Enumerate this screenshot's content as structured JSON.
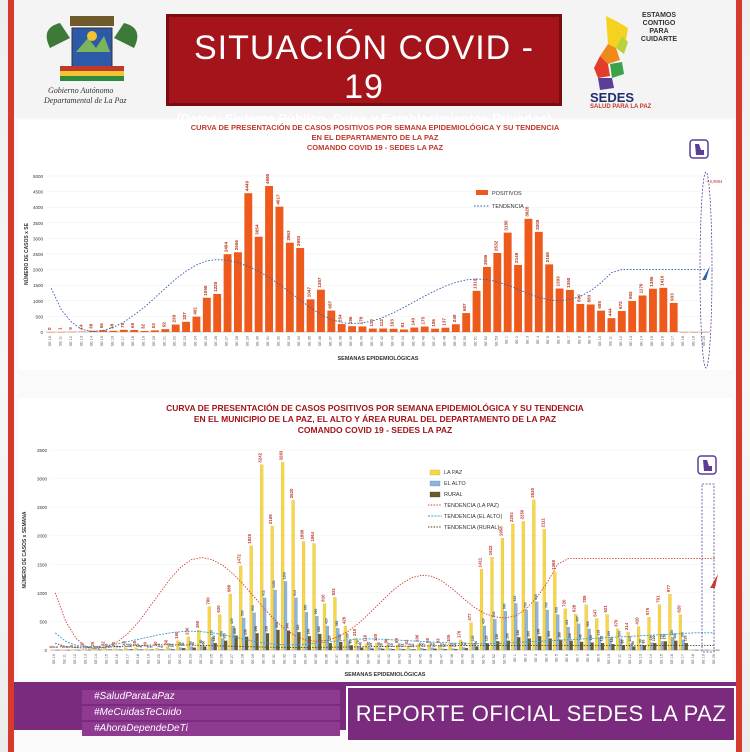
{
  "header": {
    "title": "SITUACIÓN  COVID - 19",
    "subtitle": "(Datos: Sistema Público, Cajas y Establecimientos Privados)",
    "left_logo_line1": "Gobierno Autónomo",
    "left_logo_line2": "Departamental de La Paz",
    "right_logo_line1": "ESTAMOS",
    "right_logo_line2": "CONTIGO",
    "right_logo_line3": "PARA",
    "right_logo_line4": "CUIDARTE",
    "right_logo_brand": "SEDES",
    "right_logo_tag": "SALUD PARA LA PAZ"
  },
  "chart1": {
    "title1": "CURVA DE PRESENTACIÓN DE CASOS POSITIVOS POR SEMANA EPIDEMIOLÓGICA Y SU TENDENCIA",
    "title2": "EN EL DEPARTAMENTO DE LA PAZ",
    "title3": "COMANDO COVID 19 - SEDES LA PAZ"
  },
  "chart2": {
    "title1": "CURVA DE PRESENTACIÓN DE CASOS POSITIVOS POR SEMANA EPIDEMIOLÓGICA Y SU TENDENCIA",
    "title2": "EN EL  MUNICIPIO DE LA PAZ, EL ALTO Y ÁREA RURAL DEL DEPARTAMENTO DE LA PAZ",
    "title3": "COMANDO COVID 19 - SEDES LA PAZ"
  },
  "footer": {
    "hashtag1": "#SaludParaLaPaz",
    "hashtag2": "#MeCuidasTeCuido",
    "hashtag3": "#AhoraDependeDeTi",
    "report": "REPORTE OFICIAL SEDES LA PAZ"
  },
  "colors": {
    "accent_red": "#a5141b",
    "frame_red": "#d63a2a",
    "bar_orange": "#ee5a1c",
    "lapaz_yellow": "#f7d64a",
    "elalto_blue": "#8fb4de",
    "rural_brown": "#6b5a2a",
    "purple": "#7b2b7e"
  },
  "chart_data": [
    {
      "type": "bar",
      "ylabel": "NÚMERO DE CASOS x SE",
      "xlabel": "SEMANAS EPIDEMIOLÓGICAS",
      "ylim": [
        0,
        5000
      ],
      "yticks": [
        0,
        500,
        1000,
        1500,
        2000,
        2500,
        3000,
        3500,
        4000,
        4500,
        5000
      ],
      "legend_position": "top-right",
      "categories": [
        "SE 10",
        "SE 11",
        "SE 12",
        "SE 13",
        "SE 14",
        "SE 15",
        "SE 16",
        "SE 17",
        "SE 18",
        "SE 19",
        "SE 20",
        "SE 21",
        "SE 22",
        "SE 23",
        "SE 24",
        "SE 25",
        "SE 26",
        "SE 27",
        "SE 28",
        "SE 29",
        "SE 30",
        "SE 31",
        "SE 32",
        "SE 33",
        "SE 34",
        "SE 35",
        "SE 36",
        "SE 37",
        "SE 38",
        "SE 39",
        "SE 40",
        "SE 41",
        "SE 42",
        "SE 43",
        "SE 44",
        "SE 45",
        "SE 46",
        "SE 47",
        "SE 48",
        "SE 49",
        "SE 50",
        "SE 51",
        "SE 52",
        "SE 53",
        "SE 1",
        "SE 2",
        "SE 3",
        "SE 4",
        "SE 5",
        "SE 6",
        "SE 7",
        "SE 8",
        "SE 9",
        "SE 10",
        "SE 11",
        "SE 12",
        "SE 13",
        "SE 14",
        "SE 15",
        "SE 16",
        "SE 17",
        "SE 18",
        "SE 19",
        "SE 20"
      ],
      "series": [
        {
          "name": "POSITIVOS",
          "values": [
            0,
            1,
            9,
            14,
            38,
            56,
            38,
            70,
            65,
            32,
            53,
            92,
            239,
            327,
            491,
            1098,
            1220,
            2494,
            2556,
            4449,
            3054,
            4680,
            4017,
            2863,
            2693,
            1047,
            1357,
            687,
            254,
            186,
            178,
            110,
            112,
            103,
            81,
            143,
            175,
            106,
            137,
            249,
            607,
            1319,
            2086,
            2532,
            3185,
            2149,
            3628,
            3209,
            2168,
            1393,
            1350,
            899,
            883,
            685,
            444,
            672,
            992,
            1170,
            1386,
            1416,
            933,
            0,
            0,
            0
          ]
        },
        {
          "name": "TENDENCIA",
          "values": [
            1400,
            700,
            300,
            80,
            20,
            50,
            150,
            320,
            550,
            800,
            1100,
            1400,
            1700,
            1950,
            2150,
            2280,
            2320,
            2300,
            2220,
            2100,
            1950,
            1750,
            1520,
            1280,
            1020,
            780,
            560,
            400,
            300,
            270,
            290,
            360,
            470,
            620,
            790,
            970,
            1150,
            1320,
            1470,
            1590,
            1670,
            1700,
            1680,
            1610,
            1500,
            1370,
            1230,
            1110,
            1030,
            1000,
            1040,
            1140,
            1320,
            1580,
            1900,
            2000,
            2000,
            2000,
            2000,
            2000,
            2000,
            2000,
            2000,
            2000
          ]
        }
      ],
      "annotation": "+ 6,9994"
    },
    {
      "type": "bar",
      "ylabel": "NÚMERO DE CASOS x SEMANA",
      "xlabel": "SEMANAS EPIDEMIOLÓGICAS",
      "ylim": [
        0,
        3500
      ],
      "yticks": [
        0,
        500,
        1000,
        1500,
        2000,
        2500,
        3000,
        3500
      ],
      "legend_position": "top-right",
      "categories": [
        "SE 10",
        "SE 11",
        "SE 12",
        "SE 13",
        "SE 14",
        "SE 15",
        "SE 16",
        "SE 17",
        "SE 18",
        "SE 19",
        "SE 20",
        "SE 21",
        "SE 22",
        "SE 23",
        "SE 24",
        "SE 25",
        "SE 26",
        "SE 27",
        "SE 28",
        "SE 29",
        "SE 30",
        "SE 31",
        "SE 32",
        "SE 33",
        "SE 34",
        "SE 35",
        "SE 36",
        "SE 37",
        "SE 38",
        "SE 39",
        "SE 40",
        "SE 41",
        "SE 42",
        "SE 43",
        "SE 44",
        "SE 45",
        "SE 46",
        "SE 47",
        "SE 48",
        "SE 49",
        "SE 50",
        "SE 51",
        "SE 52",
        "SE 53",
        "SE 1",
        "SE 2",
        "SE 3",
        "SE 4",
        "SE 5",
        "SE 6",
        "SE 7",
        "SE 8",
        "SE 9",
        "SE 10",
        "SE 11",
        "SE 12",
        "SE 13",
        "SE 14",
        "SE 15",
        "SE 16",
        "SE 17",
        "SE 18",
        "SE 19",
        "SE 20"
      ],
      "series": [
        {
          "name": "LA PAZ",
          "values": [
            0,
            3,
            8,
            10,
            25,
            32,
            20,
            40,
            40,
            20,
            30,
            60,
            160,
            230,
            350,
            760,
            620,
            980,
            1472,
            1825,
            3242,
            2169,
            3283,
            2620,
            1898,
            1864,
            810,
            921,
            420,
            210,
            110,
            120,
            80,
            88,
            62,
            106,
            88,
            83,
            105,
            176,
            477,
            1411,
            1622,
            1958,
            2204,
            2250,
            2630,
            2111,
            1368,
            720,
            628,
            789,
            547,
            621,
            370,
            314,
            410,
            575,
            791,
            977,
            620,
            0,
            0,
            0
          ]
        },
        {
          "name": "EL ALTO",
          "values": [
            0,
            0,
            1,
            2,
            6,
            10,
            8,
            12,
            14,
            6,
            12,
            20,
            40,
            60,
            80,
            220,
            200,
            420,
            560,
            650,
            912,
            1050,
            1200,
            913,
            660,
            590,
            420,
            380,
            160,
            70,
            45,
            40,
            25,
            20,
            15,
            30,
            40,
            20,
            25,
            45,
            120,
            420,
            540,
            680,
            815,
            700,
            845,
            700,
            620,
            401,
            457,
            368,
            218,
            199,
            200,
            110,
            90,
            130,
            150,
            220,
            180,
            0,
            0,
            0
          ]
        },
        {
          "name": "RURAL",
          "values": [
            0,
            0,
            0,
            2,
            4,
            6,
            4,
            10,
            8,
            5,
            6,
            10,
            30,
            40,
            60,
            120,
            160,
            250,
            230,
            290,
            290,
            350,
            340,
            310,
            240,
            280,
            120,
            140,
            80,
            40,
            25,
            20,
            15,
            12,
            10,
            15,
            20,
            12,
            15,
            30,
            60,
            120,
            150,
            160,
            220,
            200,
            240,
            200,
            180,
            160,
            140,
            130,
            118,
            100,
            80,
            60,
            80,
            120,
            150,
            160,
            120,
            0,
            0,
            0
          ]
        },
        {
          "name": "TENDENCIA (LA PAZ)",
          "values": [
            1000,
            500,
            200,
            50,
            20,
            60,
            150,
            300,
            500,
            750,
            1000,
            1250,
            1450,
            1580,
            1620,
            1580,
            1480,
            1330,
            1140,
            930,
            720,
            520,
            360,
            240,
            170,
            150,
            170,
            230,
            330,
            470,
            640,
            820,
            1000,
            1150,
            1260,
            1310,
            1290,
            1200,
            1060,
            900,
            750,
            640,
            580,
            560,
            600,
            720,
            920,
            1180,
            1500,
            1600,
            1600,
            1600,
            1600,
            1600,
            1600,
            1600,
            1600,
            1600,
            1600,
            1600,
            1600,
            1600,
            1600,
            1600
          ]
        },
        {
          "name": "TENDENCIA (EL ALTO)",
          "values": [
            300,
            150,
            80,
            60,
            60,
            80,
            110,
            150,
            190,
            230,
            270,
            300,
            320,
            330,
            320,
            300,
            270,
            230,
            190,
            150,
            120,
            100,
            90,
            90,
            100,
            120,
            140,
            160,
            180,
            190,
            195,
            190,
            180,
            170,
            160,
            150,
            140,
            130,
            120,
            115,
            110,
            110,
            115,
            120,
            130,
            140,
            150,
            160,
            170,
            180,
            190,
            200,
            210,
            220,
            230,
            240,
            250,
            260,
            270,
            280,
            290,
            300,
            300,
            300
          ]
        },
        {
          "name": "TENDENCIA (RURAL)",
          "values": [
            120,
            60,
            40,
            35,
            40,
            50,
            60,
            70,
            80,
            85,
            90,
            90,
            88,
            85,
            80,
            75,
            70,
            65,
            60,
            55,
            50,
            48,
            46,
            45,
            45,
            46,
            48,
            50,
            52,
            55,
            58,
            60,
            62,
            65,
            68,
            70,
            72,
            74,
            76,
            78,
            80,
            80,
            80,
            80,
            80,
            80,
            80,
            80,
            80,
            80,
            80,
            80,
            80,
            80,
            80,
            80,
            80,
            80,
            80,
            80,
            80,
            80,
            80,
            80
          ]
        }
      ]
    }
  ]
}
